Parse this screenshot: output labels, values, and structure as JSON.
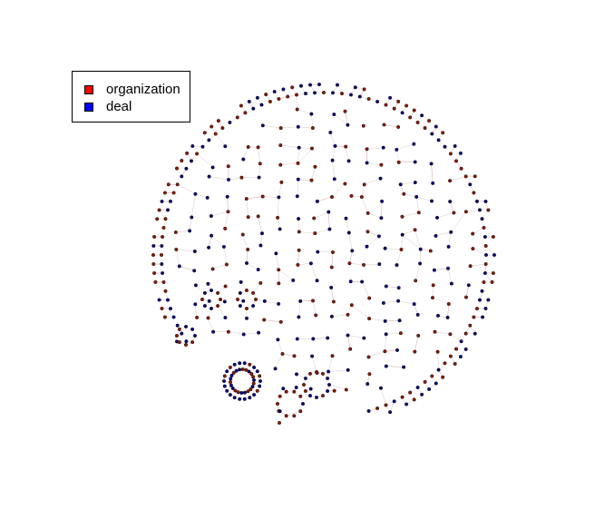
{
  "legend": {
    "items": [
      {
        "label": "organization",
        "color": "#ff0000"
      },
      {
        "label": "deal",
        "color": "#0000ff"
      }
    ]
  },
  "colors": {
    "edge": "#c8a0a0",
    "organization_node": "#8b1a00",
    "deal_node": "#0a0a7a",
    "node_outline": "#000000"
  }
}
